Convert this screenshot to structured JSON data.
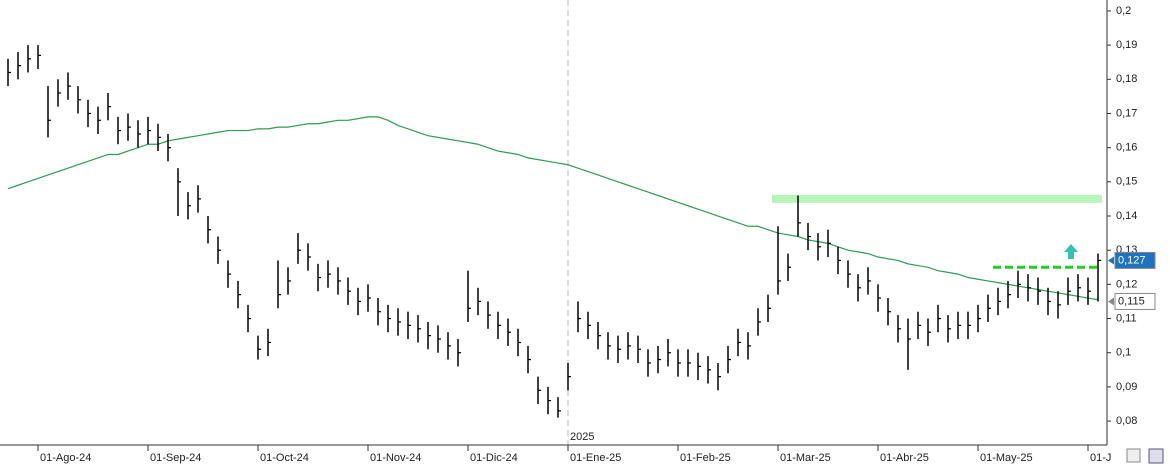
{
  "chart_data": {
    "type": "hlc",
    "categories": [
      null,
      null,
      null,
      "01-Ago-24",
      null,
      null,
      null,
      null,
      null,
      null,
      null,
      null,
      null,
      null,
      "01-Sep-24",
      null,
      null,
      null,
      null,
      null,
      null,
      null,
      null,
      null,
      null,
      "01-Oct-24",
      null,
      null,
      null,
      null,
      null,
      null,
      null,
      null,
      null,
      null,
      "01-Nov-24",
      null,
      null,
      null,
      null,
      null,
      null,
      null,
      null,
      null,
      "01-Dic-24",
      null,
      null,
      null,
      null,
      null,
      null,
      null,
      null,
      null,
      "01-Ene-25",
      null,
      null,
      null,
      null,
      null,
      null,
      null,
      null,
      null,
      null,
      "01-Feb-25",
      null,
      null,
      null,
      null,
      null,
      null,
      null,
      null,
      null,
      "01-Mar-25",
      null,
      null,
      null,
      null,
      null,
      null,
      null,
      null,
      null,
      "01-Abr-25",
      null,
      null,
      null,
      null,
      null,
      null,
      null,
      null,
      null,
      "01-May-25",
      null,
      null,
      null,
      null,
      null,
      null,
      null,
      null,
      null,
      null,
      "01-J",
      null
    ],
    "highs": [
      0.186,
      0.188,
      0.19,
      0.19,
      0.178,
      0.18,
      0.182,
      0.178,
      0.174,
      0.172,
      0.176,
      0.169,
      0.17,
      0.168,
      0.169,
      0.167,
      0.164,
      0.154,
      0.147,
      0.149,
      0.14,
      0.134,
      0.127,
      0.121,
      0.114,
      0.105,
      0.107,
      0.127,
      0.125,
      0.135,
      0.132,
      0.126,
      0.127,
      0.125,
      0.122,
      0.119,
      0.12,
      0.116,
      0.114,
      0.113,
      0.112,
      0.111,
      0.109,
      0.108,
      0.106,
      0.104,
      0.124,
      0.119,
      0.115,
      0.112,
      0.11,
      0.107,
      0.102,
      0.093,
      0.09,
      0.087,
      0.097,
      0.115,
      0.112,
      0.109,
      0.106,
      0.105,
      0.106,
      0.105,
      0.101,
      0.102,
      0.104,
      0.101,
      0.101,
      0.1,
      0.099,
      0.097,
      0.102,
      0.107,
      0.106,
      0.113,
      0.117,
      0.137,
      0.129,
      0.146,
      0.138,
      0.135,
      0.136,
      0.131,
      0.127,
      0.123,
      0.125,
      0.12,
      0.116,
      0.111,
      0.11,
      0.112,
      0.11,
      0.114,
      0.111,
      0.112,
      0.112,
      0.114,
      0.117,
      0.119,
      0.121,
      0.124,
      0.123,
      0.122,
      0.119,
      0.118,
      0.122,
      0.123,
      0.122,
      0.129
    ],
    "lows": [
      0.178,
      0.18,
      0.182,
      0.183,
      0.163,
      0.172,
      0.174,
      0.17,
      0.166,
      0.164,
      0.168,
      0.161,
      0.162,
      0.16,
      0.161,
      0.159,
      0.156,
      0.14,
      0.139,
      0.141,
      0.132,
      0.126,
      0.119,
      0.113,
      0.106,
      0.098,
      0.099,
      0.113,
      0.117,
      0.126,
      0.124,
      0.118,
      0.119,
      0.117,
      0.114,
      0.111,
      0.112,
      0.108,
      0.106,
      0.105,
      0.104,
      0.103,
      0.101,
      0.1,
      0.098,
      0.096,
      0.109,
      0.111,
      0.107,
      0.104,
      0.102,
      0.099,
      0.094,
      0.085,
      0.082,
      0.081,
      0.089,
      0.106,
      0.104,
      0.101,
      0.098,
      0.097,
      0.098,
      0.097,
      0.093,
      0.094,
      0.096,
      0.093,
      0.093,
      0.092,
      0.091,
      0.089,
      0.094,
      0.099,
      0.098,
      0.105,
      0.109,
      0.117,
      0.121,
      0.134,
      0.13,
      0.127,
      0.128,
      0.123,
      0.119,
      0.115,
      0.117,
      0.112,
      0.108,
      0.103,
      0.095,
      0.104,
      0.102,
      0.106,
      0.103,
      0.104,
      0.104,
      0.106,
      0.109,
      0.111,
      0.113,
      0.116,
      0.115,
      0.114,
      0.111,
      0.11,
      0.114,
      0.115,
      0.114,
      0.115
    ],
    "closes": [
      0.182,
      0.184,
      0.186,
      0.187,
      0.168,
      0.176,
      0.178,
      0.174,
      0.17,
      0.168,
      0.172,
      0.165,
      0.166,
      0.164,
      0.165,
      0.163,
      0.16,
      0.15,
      0.143,
      0.145,
      0.136,
      0.13,
      0.123,
      0.117,
      0.11,
      0.101,
      0.103,
      0.117,
      0.121,
      0.13,
      0.128,
      0.122,
      0.123,
      0.121,
      0.118,
      0.115,
      0.116,
      0.112,
      0.11,
      0.109,
      0.108,
      0.107,
      0.105,
      0.104,
      0.102,
      0.1,
      0.113,
      0.115,
      0.111,
      0.108,
      0.106,
      0.103,
      0.098,
      0.089,
      0.086,
      0.083,
      0.093,
      0.11,
      0.108,
      0.105,
      0.102,
      0.101,
      0.102,
      0.101,
      0.097,
      0.098,
      0.1,
      0.097,
      0.097,
      0.096,
      0.095,
      0.093,
      0.098,
      0.103,
      0.102,
      0.109,
      0.113,
      0.121,
      0.125,
      0.138,
      0.134,
      0.131,
      0.132,
      0.127,
      0.123,
      0.119,
      0.121,
      0.116,
      0.112,
      0.107,
      0.104,
      0.108,
      0.106,
      0.11,
      0.107,
      0.108,
      0.108,
      0.11,
      0.113,
      0.115,
      0.117,
      0.12,
      0.119,
      0.118,
      0.115,
      0.114,
      0.118,
      0.119,
      0.118,
      0.127
    ],
    "bar_color": "#000000",
    "moving_average": {
      "color": "#2e9e4f",
      "values": [
        0.148,
        0.149,
        0.15,
        0.151,
        0.152,
        0.153,
        0.154,
        0.155,
        0.156,
        0.157,
        0.158,
        0.158,
        0.159,
        0.16,
        0.161,
        0.161,
        0.162,
        0.1625,
        0.163,
        0.1635,
        0.164,
        0.1645,
        0.165,
        0.165,
        0.165,
        0.1655,
        0.1655,
        0.166,
        0.166,
        0.1665,
        0.167,
        0.167,
        0.1675,
        0.168,
        0.168,
        0.1685,
        0.169,
        0.169,
        0.168,
        0.1665,
        0.1655,
        0.1645,
        0.1635,
        0.163,
        0.1625,
        0.162,
        0.1615,
        0.161,
        0.16,
        0.159,
        0.1585,
        0.158,
        0.157,
        0.1565,
        0.156,
        0.1555,
        0.155,
        0.154,
        0.153,
        0.152,
        0.151,
        0.15,
        0.149,
        0.148,
        0.147,
        0.146,
        0.145,
        0.144,
        0.143,
        0.142,
        0.141,
        0.14,
        0.139,
        0.138,
        0.137,
        0.137,
        0.136,
        0.135,
        0.1345,
        0.134,
        0.133,
        0.1325,
        0.132,
        0.131,
        0.13,
        0.1295,
        0.129,
        0.128,
        0.1275,
        0.127,
        0.126,
        0.1255,
        0.125,
        0.124,
        0.1235,
        0.123,
        0.122,
        0.1215,
        0.121,
        0.1205,
        0.12,
        0.1195,
        0.119,
        0.1185,
        0.118,
        0.1175,
        0.117,
        0.1165,
        0.116,
        0.1155
      ]
    },
    "levels": [
      {
        "value": 0.145,
        "color": "#b8f5b8",
        "style": "solid"
      },
      {
        "value": 0.125,
        "color": "#22cc22",
        "style": "dashed"
      }
    ],
    "price_labels": [
      {
        "value": 0.127,
        "label": "0,127",
        "color": "#1e73be"
      },
      {
        "value": 0.115,
        "label": "0,115",
        "color": "#ffffff"
      }
    ],
    "year_marker": {
      "label": "2025",
      "category": "01-Ene-25"
    },
    "ylim": [
      0.073,
      0.2032
    ],
    "yticks": [
      {
        "value": 0.08,
        "label": "0,08"
      },
      {
        "value": 0.09,
        "label": "0,09"
      },
      {
        "value": 0.1,
        "label": "0,1"
      },
      {
        "value": 0.11,
        "label": "0,11"
      },
      {
        "value": 0.12,
        "label": "0,12"
      },
      {
        "value": 0.13,
        "label": "0,13"
      },
      {
        "value": 0.14,
        "label": "0,14"
      },
      {
        "value": 0.15,
        "label": "0,15"
      },
      {
        "value": 0.16,
        "label": "0,16"
      },
      {
        "value": 0.17,
        "label": "0,17"
      },
      {
        "value": 0.18,
        "label": "0,18"
      },
      {
        "value": 0.19,
        "label": "0,19"
      },
      {
        "value": 0.2,
        "label": "0,2"
      }
    ],
    "y_axis_side": "right"
  }
}
